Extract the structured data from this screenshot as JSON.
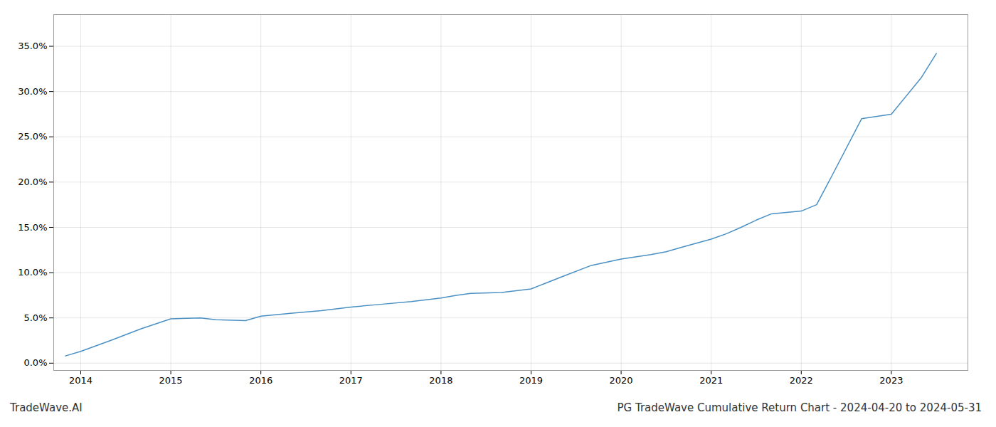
{
  "chart_data": {
    "type": "line",
    "title": "PG TradeWave Cumulative Return Chart - 2024-04-20 to 2024-05-31",
    "annotations": [
      "TradeWave.AI"
    ],
    "color": "#4a90c4",
    "x": [
      2013.83,
      2014.0,
      2014.33,
      2014.67,
      2015.0,
      2015.33,
      2015.5,
      2015.83,
      2016.0,
      2016.33,
      2016.67,
      2017.0,
      2017.33,
      2017.67,
      2018.0,
      2018.17,
      2018.33,
      2018.67,
      2019.0,
      2019.33,
      2019.67,
      2020.0,
      2020.33,
      2020.5,
      2020.67,
      2021.0,
      2021.17,
      2021.33,
      2021.5,
      2021.67,
      2022.0,
      2022.17,
      2022.33,
      2022.67,
      2023.0,
      2023.33,
      2023.5
    ],
    "values": [
      0.008,
      0.013,
      0.025,
      0.038,
      0.049,
      0.05,
      0.048,
      0.047,
      0.052,
      0.055,
      0.058,
      0.062,
      0.065,
      0.068,
      0.072,
      0.075,
      0.077,
      0.078,
      0.082,
      0.095,
      0.108,
      0.115,
      0.12,
      0.123,
      0.128,
      0.137,
      0.143,
      0.15,
      0.158,
      0.165,
      0.168,
      0.175,
      0.205,
      0.27,
      0.275,
      0.315,
      0.342
    ],
    "xlim": [
      2013.7,
      2023.85
    ],
    "ylim": [
      -0.008,
      0.385
    ],
    "xticks": [
      2014,
      2015,
      2016,
      2017,
      2018,
      2019,
      2020,
      2021,
      2022,
      2023
    ],
    "yticks": [
      {
        "value": 0.0,
        "label": "0.0%"
      },
      {
        "value": 0.05,
        "label": "5.0%"
      },
      {
        "value": 0.1,
        "label": "10.0%"
      },
      {
        "value": 0.15,
        "label": "15.0%"
      },
      {
        "value": 0.2,
        "label": "20.0%"
      },
      {
        "value": 0.25,
        "label": "25.0%"
      },
      {
        "value": 0.3,
        "label": "30.0%"
      },
      {
        "value": 0.35,
        "label": "35.0%"
      }
    ],
    "grid": true
  }
}
